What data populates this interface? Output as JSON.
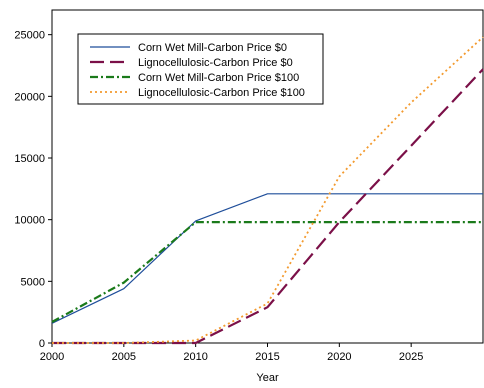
{
  "chart_data": {
    "type": "line",
    "title": "",
    "xlabel": "Year",
    "ylabel": "",
    "xlim": [
      2000,
      2030
    ],
    "ylim": [
      0,
      27000
    ],
    "x_ticks": [
      2000,
      2005,
      2010,
      2015,
      2020,
      2025
    ],
    "y_ticks": [
      0,
      5000,
      10000,
      15000,
      20000,
      25000
    ],
    "grid": false,
    "legend_position": "top-left",
    "series": [
      {
        "name": "Corn Wet Mill-Carbon Price $0",
        "color": "#1f4e9a",
        "style": "solid",
        "x": [
          2000,
          2005,
          2010,
          2015,
          2020,
          2025,
          2030
        ],
        "y": [
          1600,
          4400,
          9900,
          12100,
          12100,
          12100,
          12100
        ]
      },
      {
        "name": "Lignocellulosic-Carbon Price $0",
        "color": "#7b1048",
        "style": "dash",
        "x": [
          2000,
          2005,
          2010,
          2015,
          2020,
          2025,
          2030
        ],
        "y": [
          0,
          0,
          0,
          2900,
          9800,
          16000,
          22200
        ]
      },
      {
        "name": "Corn Wet Mill-Carbon Price $100",
        "color": "#1a7a1a",
        "style": "dashdot",
        "x": [
          2000,
          2005,
          2010,
          2015,
          2020,
          2025,
          2030
        ],
        "y": [
          1700,
          4900,
          9800,
          9800,
          9800,
          9800,
          9800
        ]
      },
      {
        "name": "Lignocellulosic-Carbon Price $100",
        "color": "#f39a2e",
        "style": "dot",
        "x": [
          2000,
          2005,
          2010,
          2015,
          2020,
          2025,
          2030
        ],
        "y": [
          0,
          0,
          200,
          3200,
          13500,
          19500,
          24800
        ]
      }
    ]
  }
}
